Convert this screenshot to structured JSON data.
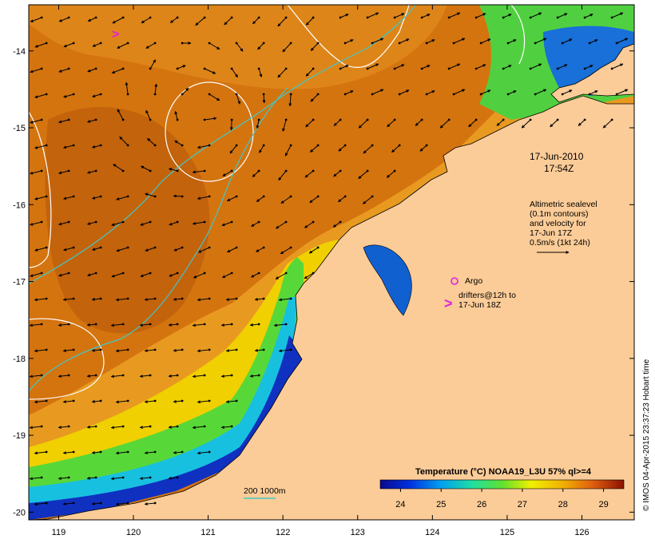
{
  "map": {
    "x_tick_labels": [
      "119",
      "120",
      "121",
      "122",
      "123",
      "124",
      "125",
      "126"
    ],
    "y_tick_labels": [
      "-14",
      "-15",
      "-16",
      "-17",
      "-18",
      "-19",
      "-20"
    ],
    "lon_range": [
      118.6,
      126.7
    ],
    "lat_range": [
      -20.1,
      -13.4
    ]
  },
  "annotations": {
    "date_line1": "17-Jun-2010",
    "date_line2": "17:54Z",
    "sealevel_lines": [
      "Altimetric sealevel",
      "(0.1m contours)",
      "and velocity for",
      "17-Jun 17Z",
      "0.5m/s (1kt 24h)"
    ],
    "argo_label": "Argo",
    "drifter_lines": [
      "drifters@12h to",
      "17-Jun 18Z"
    ],
    "depth_legend": "200  1000m"
  },
  "colorbar": {
    "title": "Temperature (°C) NOAA19_L3U 57% ql>=4",
    "ticks": [
      "24",
      "25",
      "26",
      "27",
      "28",
      "29"
    ],
    "min": 23.5,
    "max": 29.5
  },
  "credit": "© IMOS 04-Apr-2015 23:37:23 Hobart time",
  "colors": {
    "land": "#fccc98",
    "warm": "#d0700f",
    "contour_white": "#ffffff",
    "isobath": "#40c8c8",
    "argo": "#e020e0"
  }
}
